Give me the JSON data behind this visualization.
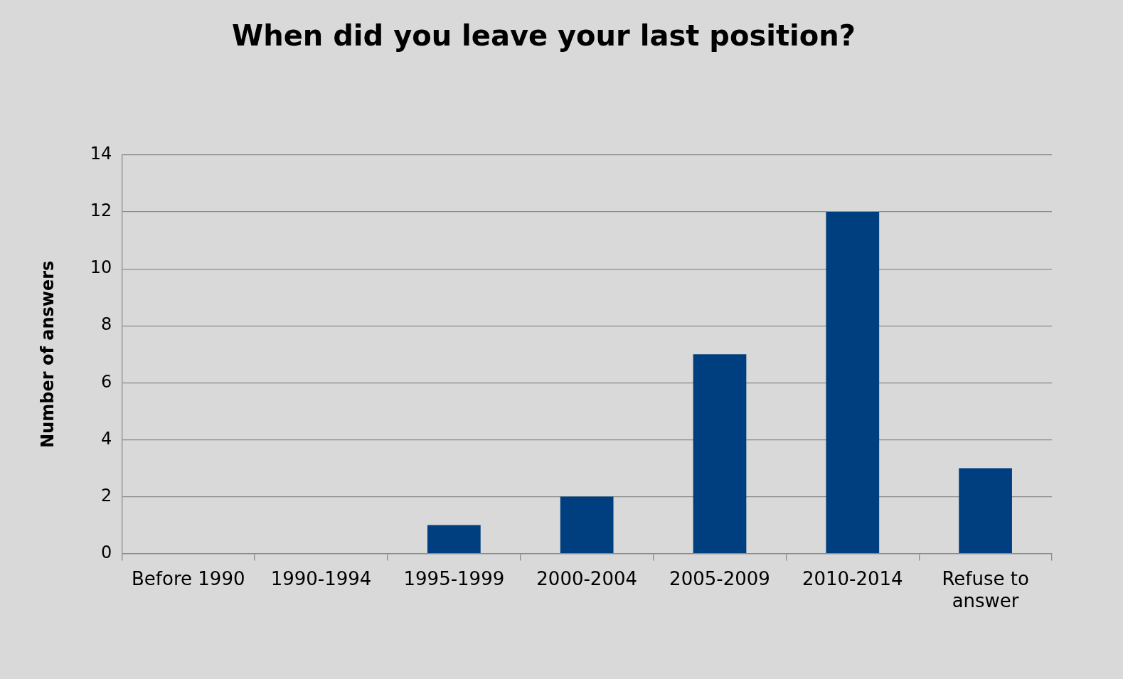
{
  "chart_data": {
    "type": "bar",
    "title": "When did you leave your last position?",
    "ylabel": "Number of answers",
    "categories": [
      "Before 1990",
      "1990-1994",
      "1995-1999",
      "2000-2004",
      "2005-2009",
      "2010-2014",
      "Refuse to answer"
    ],
    "values": [
      0,
      0,
      1,
      2,
      7,
      12,
      3
    ],
    "color": "#003f7f",
    "ylim": [
      0,
      14
    ],
    "yticks": [
      0,
      2,
      4,
      6,
      8,
      10,
      12,
      14
    ],
    "grid": "y",
    "legend": false
  }
}
